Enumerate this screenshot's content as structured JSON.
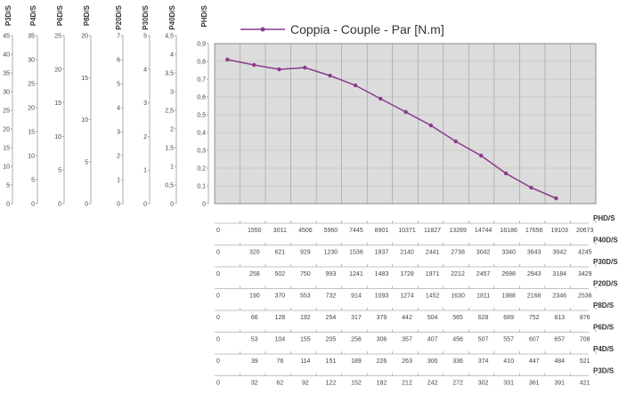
{
  "chart_data": {
    "type": "line",
    "legend": {
      "label": "Coppia - Couple - Par [N.m]",
      "placement": "top"
    },
    "series": [
      {
        "name": "Coppia - Couple - Par [N.m]",
        "color": "#8b3a8b",
        "x": [
          0,
          1550,
          3011,
          4506,
          5960,
          7445,
          8901,
          10371,
          11827,
          13269,
          14744,
          16186,
          17656,
          19103
        ],
        "y": [
          0.81,
          0.78,
          0.755,
          0.765,
          0.72,
          0.665,
          0.59,
          0.515,
          0.44,
          0.35,
          0.27,
          0.17,
          0.09,
          0.03
        ]
      }
    ],
    "grid": true,
    "left_axes": [
      {
        "name": "P3D/S",
        "ticks": [
          "45",
          "40",
          "35",
          "30",
          "25",
          "20",
          "15",
          "10",
          "5",
          "0"
        ]
      },
      {
        "name": "P4D/S",
        "ticks": [
          "35",
          "30",
          "25",
          "20",
          "15",
          "10",
          "5",
          "0"
        ]
      },
      {
        "name": "P6D/S",
        "ticks": [
          "25",
          "20",
          "15",
          "10",
          "5",
          "0"
        ]
      },
      {
        "name": "P8D/S",
        "ticks": [
          "20",
          "15",
          "10",
          "5",
          "0"
        ]
      },
      {
        "name": "P20D/S",
        "ticks": [
          "7",
          "6",
          "5",
          "4",
          "3",
          "2",
          "1",
          "0"
        ]
      },
      {
        "name": "P30D/S",
        "ticks": [
          "5",
          "4",
          "3",
          "2",
          "1",
          "0"
        ]
      },
      {
        "name": "P40D/S",
        "ticks": [
          "4,5",
          "4",
          "3,5",
          "3",
          "2,5",
          "2",
          "1,5",
          "1",
          "0,5",
          "0"
        ]
      },
      {
        "name": "PHD/S",
        "ticks": [
          "0,9",
          "0,8",
          "0,7",
          "0,6",
          "0,5",
          "0,4",
          "0,3",
          "0,2",
          "0,1",
          "0"
        ],
        "ylim": [
          0,
          0.9
        ]
      }
    ],
    "speed_rows": [
      {
        "name": "PHD/S",
        "values": [
          "0",
          "1550",
          "3011",
          "4506",
          "5960",
          "7445",
          "8901",
          "10371",
          "11827",
          "13269",
          "14744",
          "16186",
          "17656",
          "19103",
          "20673"
        ]
      },
      {
        "name": "P40D/S",
        "values": [
          "0",
          "320",
          "621",
          "929",
          "1230",
          "1536",
          "1837",
          "2140",
          "2441",
          "2738",
          "3042",
          "3340",
          "3643",
          "3942",
          "4245"
        ]
      },
      {
        "name": "P30D/S",
        "values": [
          "0",
          "258",
          "502",
          "750",
          "993",
          "1241",
          "1483",
          "1728",
          "1971",
          "2212",
          "2457",
          "2698",
          "2943",
          "3184",
          "3429"
        ]
      },
      {
        "name": "P20D/S",
        "values": [
          "0",
          "190",
          "370",
          "553",
          "732",
          "914",
          "1093",
          "1274",
          "1452",
          "1630",
          "1811",
          "1988",
          "2168",
          "2346",
          "2536"
        ]
      },
      {
        "name": "P8D/S",
        "values": [
          "0",
          "66",
          "128",
          "192",
          "254",
          "317",
          "379",
          "442",
          "504",
          "565",
          "628",
          "689",
          "752",
          "813",
          "876"
        ]
      },
      {
        "name": "P6D/S",
        "values": [
          "0",
          "53",
          "104",
          "155",
          "205",
          "256",
          "306",
          "357",
          "407",
          "456",
          "507",
          "557",
          "607",
          "657",
          "708"
        ]
      },
      {
        "name": "P4D/S",
        "values": [
          "0",
          "39",
          "76",
          "114",
          "151",
          "189",
          "226",
          "263",
          "300",
          "336",
          "374",
          "410",
          "447",
          "484",
          "521"
        ]
      },
      {
        "name": "P3D/S",
        "values": [
          "0",
          "32",
          "62",
          "92",
          "122",
          "152",
          "182",
          "212",
          "242",
          "272",
          "302",
          "331",
          "361",
          "391",
          "421"
        ]
      }
    ]
  }
}
